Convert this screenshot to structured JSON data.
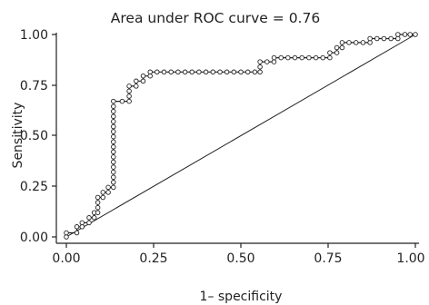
{
  "chart_data": {
    "type": "line",
    "title": "Area under ROC curve = 0.76",
    "xlabel": "1– specificity",
    "ylabel": "Sensitivity",
    "xlim": [
      0,
      1
    ],
    "ylim": [
      0,
      1
    ],
    "x_ticks": [
      "0.00",
      "0.25",
      "0.50",
      "0.75",
      "1.00"
    ],
    "y_ticks": [
      "0.00",
      "0.25",
      "0.50",
      "0.75",
      "1.00"
    ],
    "grid": false,
    "legend": "none",
    "colors": {
      "line": "#222222",
      "marker_fill": "#ffffff"
    },
    "series": [
      {
        "values": [
          [
            0.0,
            0.0
          ],
          [
            0.0,
            0.02
          ],
          [
            0.03,
            0.02
          ],
          [
            0.03,
            0.05
          ],
          [
            0.045,
            0.05
          ],
          [
            0.045,
            0.07
          ],
          [
            0.065,
            0.07
          ],
          [
            0.065,
            0.095
          ],
          [
            0.08,
            0.095
          ],
          [
            0.08,
            0.12
          ],
          [
            0.09,
            0.12
          ],
          [
            0.09,
            0.145
          ],
          [
            0.09,
            0.17
          ],
          [
            0.09,
            0.195
          ],
          [
            0.105,
            0.195
          ],
          [
            0.105,
            0.22
          ],
          [
            0.12,
            0.22
          ],
          [
            0.12,
            0.245
          ],
          [
            0.135,
            0.245
          ],
          [
            0.135,
            0.27
          ],
          [
            0.135,
            0.295
          ],
          [
            0.135,
            0.32
          ],
          [
            0.135,
            0.345
          ],
          [
            0.135,
            0.37
          ],
          [
            0.135,
            0.395
          ],
          [
            0.135,
            0.42
          ],
          [
            0.135,
            0.445
          ],
          [
            0.135,
            0.47
          ],
          [
            0.135,
            0.495
          ],
          [
            0.135,
            0.52
          ],
          [
            0.135,
            0.545
          ],
          [
            0.135,
            0.57
          ],
          [
            0.135,
            0.595
          ],
          [
            0.135,
            0.62
          ],
          [
            0.135,
            0.645
          ],
          [
            0.135,
            0.67
          ],
          [
            0.16,
            0.67
          ],
          [
            0.18,
            0.67
          ],
          [
            0.18,
            0.695
          ],
          [
            0.18,
            0.72
          ],
          [
            0.18,
            0.745
          ],
          [
            0.2,
            0.745
          ],
          [
            0.2,
            0.77
          ],
          [
            0.22,
            0.77
          ],
          [
            0.22,
            0.795
          ],
          [
            0.24,
            0.795
          ],
          [
            0.24,
            0.815
          ],
          [
            0.26,
            0.815
          ],
          [
            0.28,
            0.815
          ],
          [
            0.3,
            0.815
          ],
          [
            0.32,
            0.815
          ],
          [
            0.34,
            0.815
          ],
          [
            0.36,
            0.815
          ],
          [
            0.38,
            0.815
          ],
          [
            0.4,
            0.815
          ],
          [
            0.42,
            0.815
          ],
          [
            0.44,
            0.815
          ],
          [
            0.46,
            0.815
          ],
          [
            0.48,
            0.815
          ],
          [
            0.5,
            0.815
          ],
          [
            0.52,
            0.815
          ],
          [
            0.54,
            0.815
          ],
          [
            0.555,
            0.815
          ],
          [
            0.555,
            0.84
          ],
          [
            0.555,
            0.865
          ],
          [
            0.575,
            0.865
          ],
          [
            0.595,
            0.865
          ],
          [
            0.595,
            0.885
          ],
          [
            0.615,
            0.885
          ],
          [
            0.635,
            0.885
          ],
          [
            0.655,
            0.885
          ],
          [
            0.675,
            0.885
          ],
          [
            0.695,
            0.885
          ],
          [
            0.715,
            0.885
          ],
          [
            0.735,
            0.885
          ],
          [
            0.755,
            0.885
          ],
          [
            0.755,
            0.91
          ],
          [
            0.775,
            0.91
          ],
          [
            0.775,
            0.935
          ],
          [
            0.79,
            0.935
          ],
          [
            0.79,
            0.96
          ],
          [
            0.81,
            0.96
          ],
          [
            0.83,
            0.96
          ],
          [
            0.85,
            0.96
          ],
          [
            0.87,
            0.96
          ],
          [
            0.87,
            0.98
          ],
          [
            0.89,
            0.98
          ],
          [
            0.91,
            0.98
          ],
          [
            0.93,
            0.98
          ],
          [
            0.95,
            0.98
          ],
          [
            0.95,
            1.0
          ],
          [
            0.97,
            1.0
          ],
          [
            0.985,
            1.0
          ],
          [
            1.0,
            1.0
          ]
        ]
      }
    ],
    "reference_line": [
      [
        0,
        0
      ],
      [
        1,
        1
      ]
    ]
  }
}
